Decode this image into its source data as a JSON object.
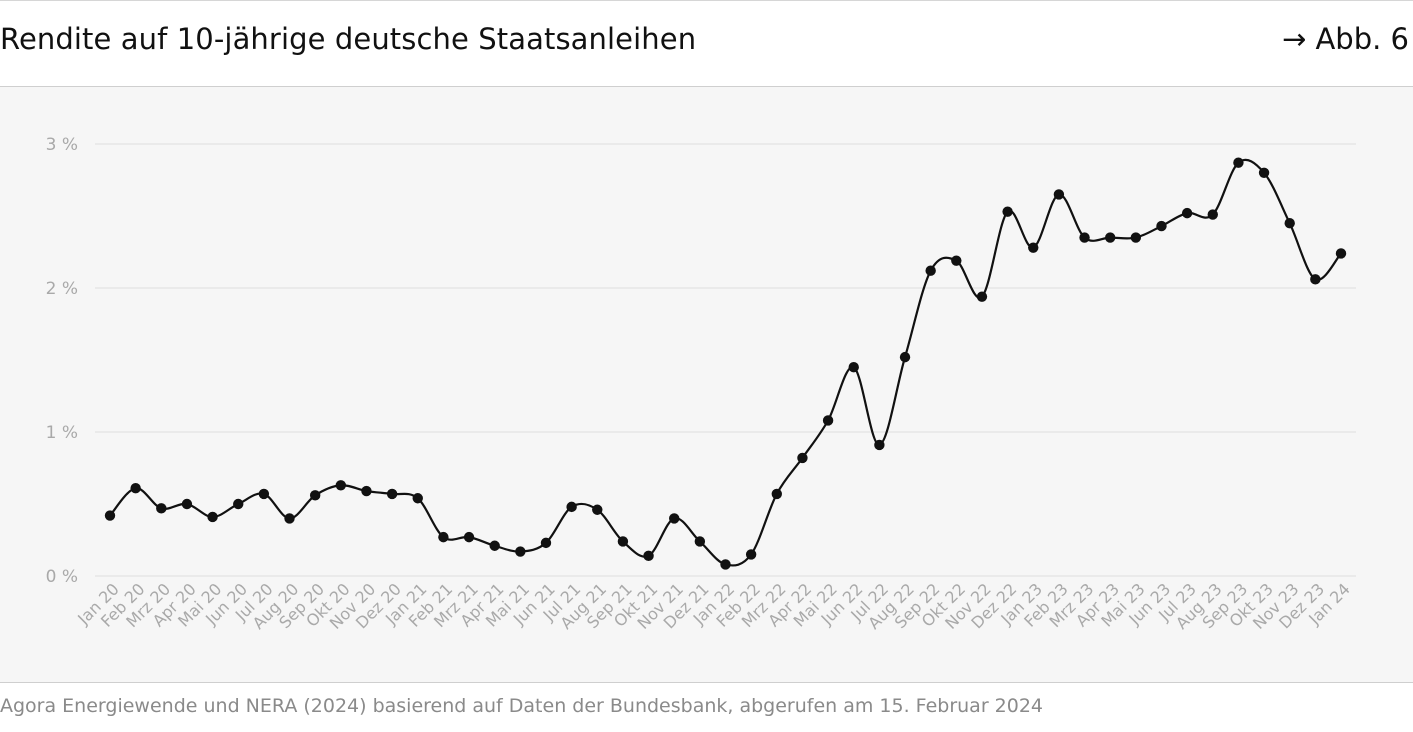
{
  "header": {
    "title": "Rendite auf 10-jährige deutsche Staatsanleihen",
    "figure_ref": "→ Abb. 6"
  },
  "footer": {
    "source": "Agora Energiewende und NERA (2024) basierend auf Daten der Bundesbank, abgerufen am 15. Februar 2024"
  },
  "colors": {
    "line": "#111111",
    "grid": "#dedede",
    "tick_text": "#a9a9a9",
    "plot_bg": "#f6f6f6"
  },
  "chart_data": {
    "type": "line",
    "title": "Rendite auf 10-jährige deutsche Staatsanleihen",
    "xlabel": "",
    "ylabel": "",
    "ylim": [
      0,
      3
    ],
    "y_ticks": [
      {
        "value": 0,
        "label": "0 %"
      },
      {
        "value": 1,
        "label": "1 %"
      },
      {
        "value": 2,
        "label": "2 %"
      },
      {
        "value": 3,
        "label": "3 %"
      }
    ],
    "grid": true,
    "categories": [
      "Jan 20",
      "Feb 20",
      "Mrz 20",
      "Apr 20",
      "Mai 20",
      "Jun 20",
      "Jul 20",
      "Aug 20",
      "Sep 20",
      "Okt 20",
      "Nov 20",
      "Dez 20",
      "Jan 21",
      "Feb 21",
      "Mrz 21",
      "Apr 21",
      "Mai 21",
      "Jun 21",
      "Jul 21",
      "Aug 21",
      "Sep 21",
      "Okt 21",
      "Nov 21",
      "Dez 21",
      "Jan 22",
      "Feb 22",
      "Mrz 22",
      "Apr 22",
      "Mai 22",
      "Jun 22",
      "Jul 22",
      "Aug 22",
      "Sep 22",
      "Okt 22",
      "Nov 22",
      "Dez 22",
      "Jan 23",
      "Feb 23",
      "Mrz 23",
      "Apr 23",
      "Mai 23",
      "Jun 23",
      "Jul 23",
      "Aug 23",
      "Sep 23",
      "Okt 23",
      "Nov 23",
      "Dez 23",
      "Jan 24"
    ],
    "series": [
      {
        "name": "Rendite",
        "values": [
          0.42,
          0.61,
          0.47,
          0.5,
          0.41,
          0.5,
          0.57,
          0.4,
          0.56,
          0.63,
          0.59,
          0.57,
          0.54,
          0.27,
          0.27,
          0.21,
          0.17,
          0.23,
          0.48,
          0.46,
          0.24,
          0.14,
          0.4,
          0.24,
          0.08,
          0.15,
          0.57,
          0.82,
          1.08,
          1.45,
          0.91,
          1.52,
          2.12,
          2.19,
          1.94,
          2.53,
          2.28,
          2.65,
          2.35,
          2.35,
          2.35,
          2.43,
          2.52,
          2.51,
          2.87,
          2.8,
          2.45,
          2.06,
          2.24
        ]
      }
    ]
  }
}
